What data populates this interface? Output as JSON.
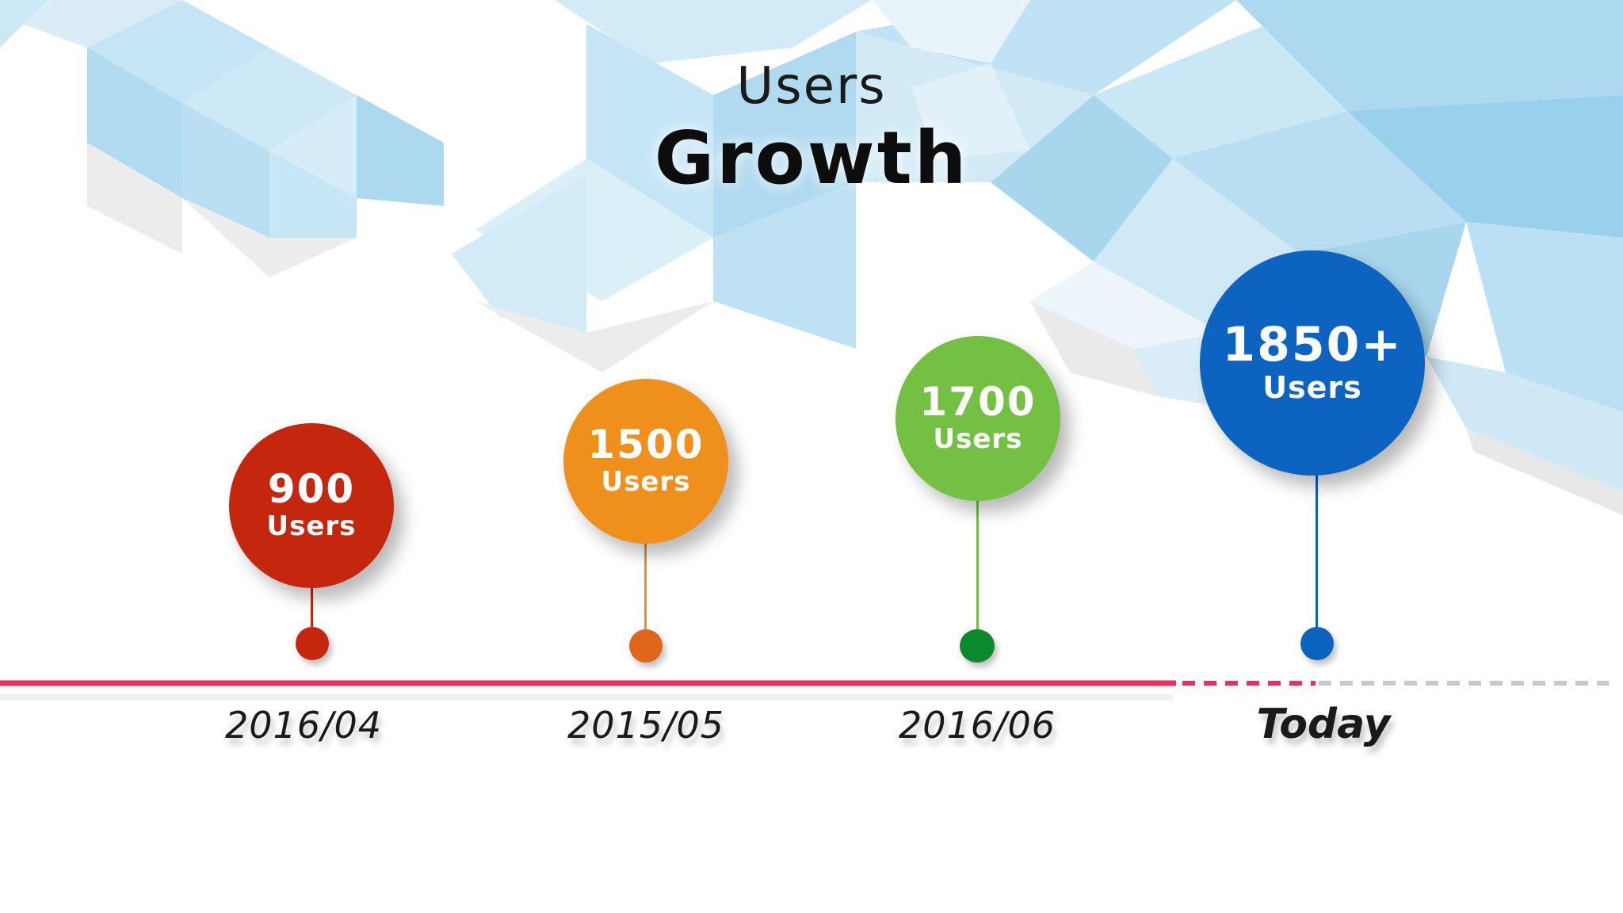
{
  "title": {
    "line1": "Users",
    "line2": "Growth"
  },
  "milestones": [
    {
      "value": "900",
      "unit": "Users",
      "date": "2016/04",
      "color": "#c4270e",
      "dot_color": "#c4270e"
    },
    {
      "value": "1500",
      "unit": "Users",
      "date": "2015/05",
      "color": "#f0901c",
      "dot_color": "#e0671a"
    },
    {
      "value": "1700",
      "unit": "Users",
      "date": "2016/06",
      "color": "#74c043",
      "dot_color": "#0a8a2c"
    },
    {
      "value": "1850+",
      "unit": "Users",
      "date": "Today",
      "color": "#0c63c0",
      "dot_color": "#0c63c0"
    }
  ],
  "colors": {
    "timeline": "#e8305a",
    "timeline_future": "#c8c8c8",
    "background_tint": "#9fd3ee"
  }
}
